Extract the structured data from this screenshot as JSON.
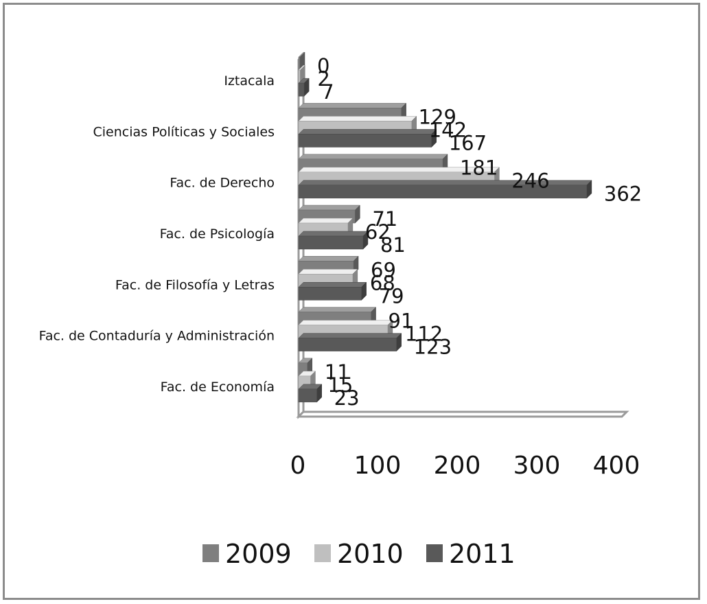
{
  "chart_data": {
    "type": "bar",
    "orientation": "horizontal",
    "categories": [
      "Iztacala",
      "Ciencias Políticas y Sociales",
      "Fac. de Derecho",
      "Fac. de Psicología",
      "Fac. de Filosofía y Letras",
      "Fac. de Contaduría y Administración",
      "Fac. de Economía"
    ],
    "series": [
      {
        "name": "2009",
        "color": "#7f7f7f",
        "values": [
          0,
          129,
          181,
          71,
          69,
          91,
          11
        ]
      },
      {
        "name": "2010",
        "color": "#bfbfbf",
        "values": [
          2,
          142,
          246,
          62,
          68,
          112,
          15
        ]
      },
      {
        "name": "2011",
        "color": "#595959",
        "values": [
          7,
          167,
          362,
          81,
          79,
          123,
          23
        ]
      }
    ],
    "xlim": [
      0,
      400
    ],
    "xticks": [
      "0",
      "100",
      "200",
      "300",
      "400"
    ],
    "legend_position": "bottom",
    "grid": false,
    "style": "3d"
  }
}
